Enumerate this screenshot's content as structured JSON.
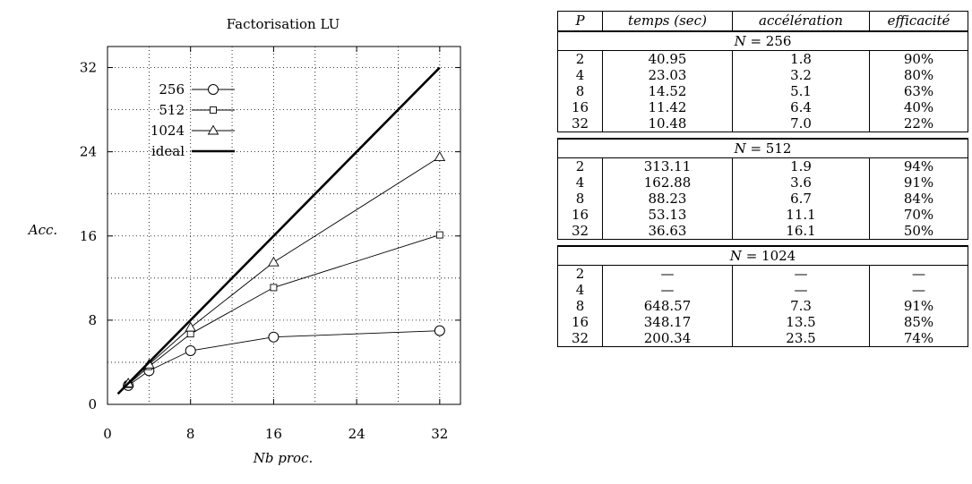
{
  "chart_data": {
    "type": "line",
    "title": "Factorisation LU",
    "xlabel": "Nb proc.",
    "ylabel": "Acc.",
    "xlim": [
      0,
      34
    ],
    "ylim": [
      0,
      34
    ],
    "xticks": [
      0,
      8,
      16,
      24,
      32
    ],
    "yticks": [
      0,
      8,
      16,
      24,
      32
    ],
    "grid": true,
    "legend_position": "top-left",
    "series": [
      {
        "name": "256",
        "marker": "circle",
        "x": [
          2,
          4,
          8,
          16,
          32
        ],
        "y": [
          1.8,
          3.2,
          5.1,
          6.4,
          7.0
        ]
      },
      {
        "name": "512",
        "marker": "square",
        "x": [
          2,
          4,
          8,
          16,
          32
        ],
        "y": [
          1.9,
          3.6,
          6.7,
          11.1,
          16.1
        ]
      },
      {
        "name": "1024",
        "marker": "triangle",
        "x": [
          2,
          4,
          8,
          16,
          32
        ],
        "y": [
          2.0,
          3.8,
          7.3,
          13.5,
          23.5
        ]
      },
      {
        "name": "ideal",
        "marker": "none",
        "x": [
          1,
          32
        ],
        "y": [
          1,
          32
        ]
      }
    ]
  },
  "table": {
    "headers": [
      "P",
      "temps (sec)",
      "accélération",
      "efficacité"
    ],
    "groups": [
      {
        "n_var": "N",
        "n_value": " = 256",
        "rows": [
          [
            "2",
            "40.95",
            "1.8",
            "90%"
          ],
          [
            "4",
            "23.03",
            "3.2",
            "80%"
          ],
          [
            "8",
            "14.52",
            "5.1",
            "63%"
          ],
          [
            "16",
            "11.42",
            "6.4",
            "40%"
          ],
          [
            "32",
            "10.48",
            "7.0",
            "22%"
          ]
        ]
      },
      {
        "n_var": "N",
        "n_value": " = 512",
        "rows": [
          [
            "2",
            "313.11",
            "1.9",
            "94%"
          ],
          [
            "4",
            "162.88",
            "3.6",
            "91%"
          ],
          [
            "8",
            "88.23",
            "6.7",
            "84%"
          ],
          [
            "16",
            "53.13",
            "11.1",
            "70%"
          ],
          [
            "32",
            "36.63",
            "16.1",
            "50%"
          ]
        ]
      },
      {
        "n_var": "N",
        "n_value": " = 1024",
        "rows": [
          [
            "2",
            "—",
            "—",
            "—"
          ],
          [
            "4",
            "—",
            "—",
            "—"
          ],
          [
            "8",
            "648.57",
            "7.3",
            "91%"
          ],
          [
            "16",
            "348.17",
            "13.5",
            "85%"
          ],
          [
            "32",
            "200.34",
            "23.5",
            "74%"
          ]
        ]
      }
    ]
  }
}
